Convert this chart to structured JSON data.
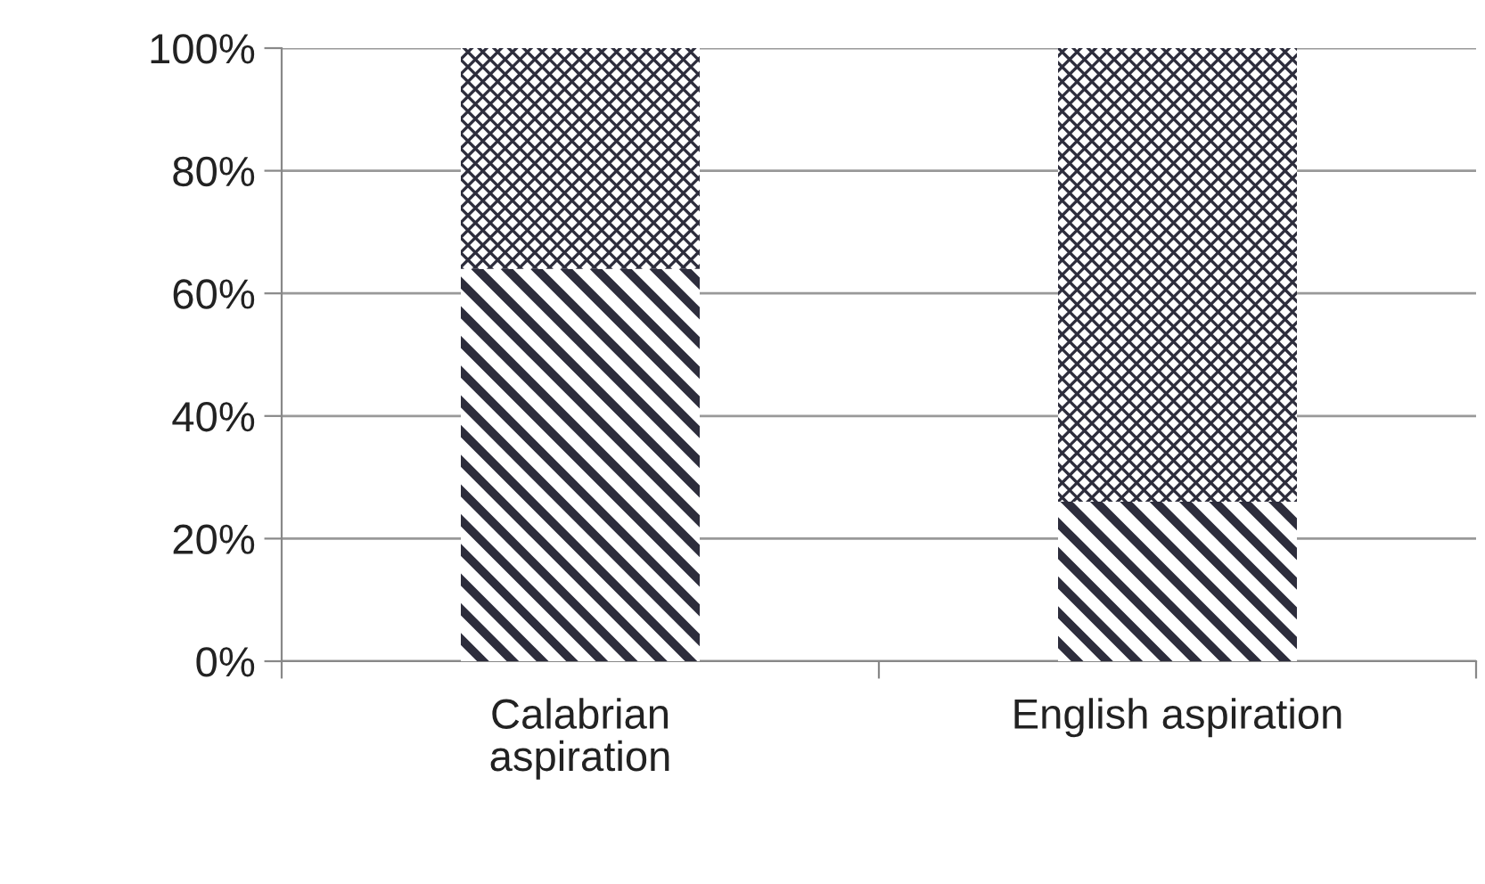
{
  "chart_data": {
    "type": "bar",
    "stacked": true,
    "categories": [
      "Calabrian\naspiration",
      "English aspiration"
    ],
    "series": [
      {
        "color": "#2d2d3c",
        "values": [
          64,
          26
        ]
      },
      {
        "color": "#2d2d3c",
        "values": [
          36,
          74
        ]
      }
    ],
    "ylim": [
      0,
      100
    ],
    "yticks": [
      {
        "value": 0,
        "label": "0%"
      },
      {
        "value": 20,
        "label": "20%"
      },
      {
        "value": 40,
        "label": "40%"
      },
      {
        "value": 60,
        "label": "60%"
      },
      {
        "value": 80,
        "label": "80%"
      },
      {
        "value": 100,
        "label": "100%"
      }
    ],
    "grid": "y"
  }
}
